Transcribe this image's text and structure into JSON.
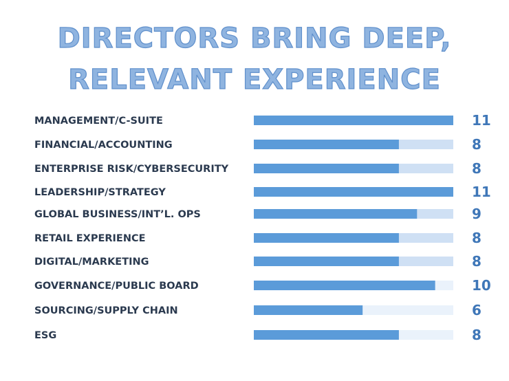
{
  "title_lines": [
    "DIRECTORS BRING DEEP,",
    "RELEVANT EXPERIENCE"
  ],
  "chart_data": {
    "type": "bar",
    "orientation": "horizontal",
    "title": "DIRECTORS BRING DEEP, RELEVANT EXPERIENCE",
    "categories": [
      "MANAGEMENT/C-SUITE",
      "FINANCIAL/ACCOUNTING",
      "ENTERPRISE RISK/CYBERSECURITY",
      "LEADERSHIP/STRATEGY",
      "GLOBAL BUSINESS/INT’L. OPS",
      "RETAIL EXPERIENCE",
      "DIGITAL/MARKETING",
      "GOVERNANCE/PUBLIC BOARD",
      "SOURCING/SUPPLY CHAIN",
      "ESG"
    ],
    "values": [
      11,
      8,
      8,
      11,
      9,
      8,
      8,
      10,
      6,
      8
    ],
    "max_value": 11,
    "xlim": [
      0,
      11
    ],
    "grid": false,
    "colors": {
      "bar": "#5b9bd9",
      "track_dark": "#cfe0f4",
      "track_light": "#eaf2fb",
      "value_text": "#3f77b8",
      "label_text": "#2b3a4f"
    }
  }
}
